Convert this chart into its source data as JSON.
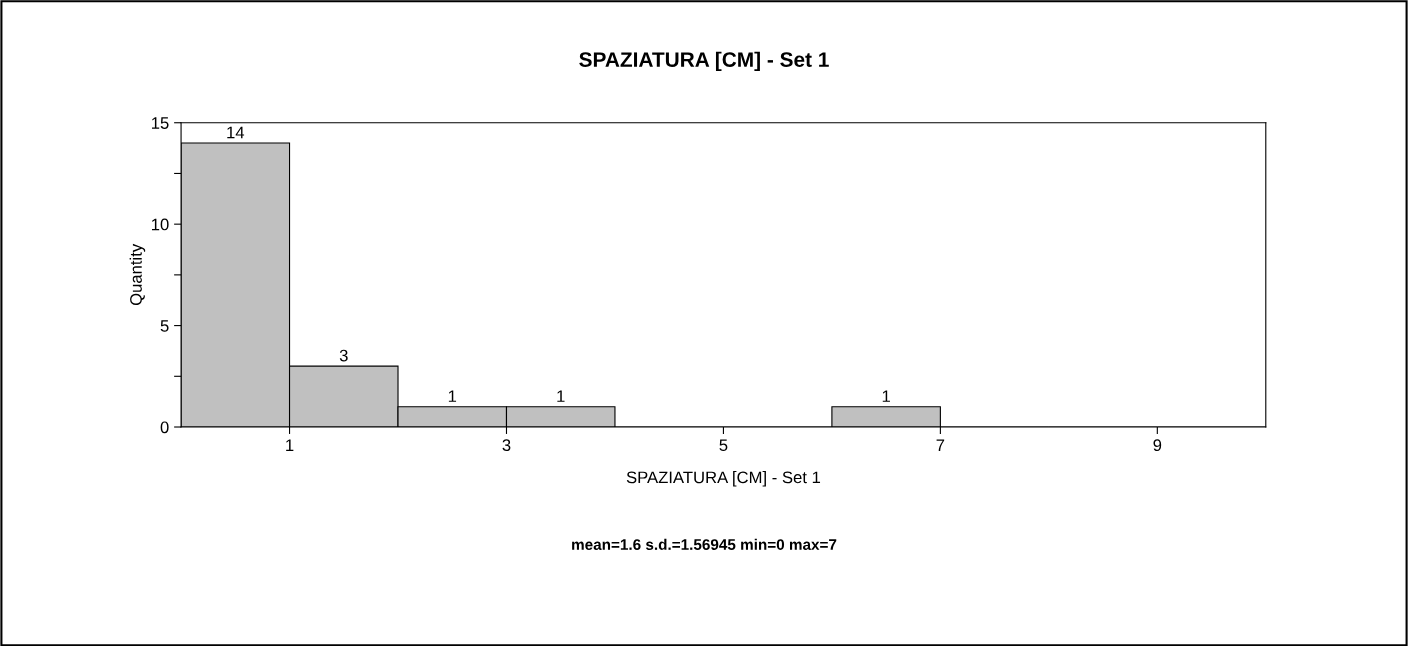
{
  "chart_data": {
    "type": "histogram",
    "title": "SPAZIATURA [CM] - Set 1",
    "xlabel": "SPAZIATURA [CM] - Set 1",
    "ylabel": "Quantity",
    "bins": [
      0,
      1,
      2,
      3,
      4,
      5,
      6,
      7,
      8,
      9,
      10
    ],
    "values": [
      14,
      3,
      1,
      1,
      0,
      0,
      1,
      0,
      0,
      0
    ],
    "value_labels": [
      "14",
      "3",
      "1",
      "1",
      null,
      null,
      "1",
      null,
      null,
      null
    ],
    "color": "#c0c0c0",
    "xlim": [
      0,
      10
    ],
    "xticks": [
      1,
      3,
      5,
      7,
      9
    ],
    "ylim": [
      0,
      15
    ],
    "yticks": [
      0,
      {
        "value": 2.5,
        "label": null
      },
      5,
      {
        "value": 7.5,
        "label": null
      },
      10,
      {
        "value": 12.5,
        "label": null
      },
      15
    ],
    "grid": false,
    "legend": false,
    "annotations": [
      "mean=1.6 s.d.=1.56945 min=0 max=7"
    ]
  }
}
